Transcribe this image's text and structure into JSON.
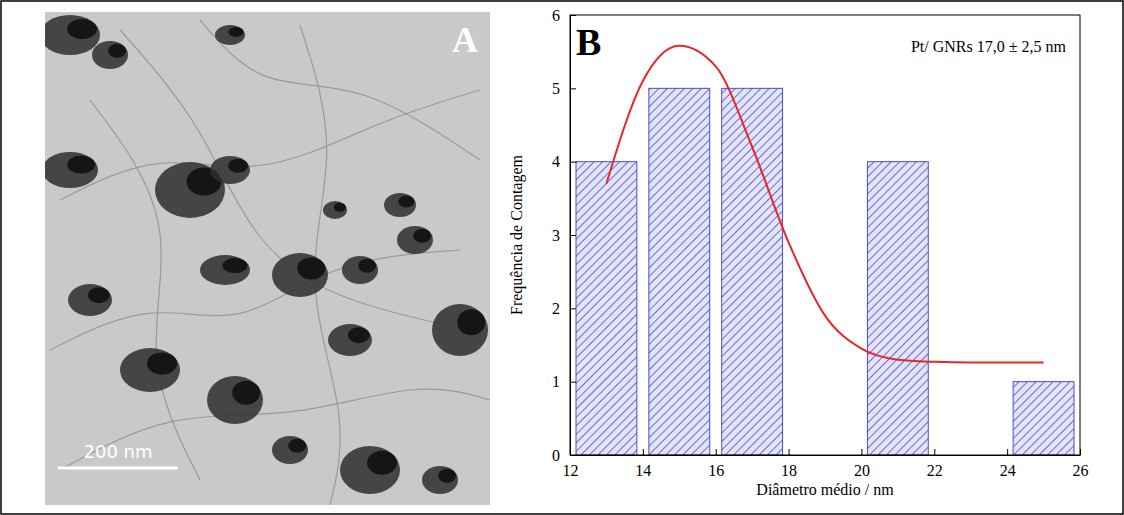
{
  "image_panel": {
    "panel_label": "A",
    "scale_bar": "200 nm"
  },
  "chart_data": {
    "type": "histogram",
    "panel_label": "B",
    "bins": [
      12,
      14,
      16,
      18,
      20,
      22,
      24,
      26
    ],
    "counts": [
      4,
      5,
      5,
      0,
      4,
      0,
      1
    ],
    "color": "#4b4bd6",
    "fit_line": {
      "type": "line",
      "color": "#e8262a",
      "x": [
        13,
        14,
        15,
        16,
        17,
        18,
        19,
        20,
        21,
        22,
        23,
        24,
        25
      ],
      "values": [
        3.7,
        5.1,
        5.58,
        5.3,
        4.2,
        2.9,
        1.9,
        1.45,
        1.3,
        1.27,
        1.26,
        1.26,
        1.26
      ]
    },
    "annotation": "Pt/ GNRs 17,0 ± 2,5 nm",
    "x_label": "Diâmetro médio / nm",
    "y_label": "Frequência de Contagem",
    "xlim": [
      12,
      26
    ],
    "xticks": [
      12,
      14,
      16,
      18,
      20,
      22,
      24,
      26
    ],
    "ylim": [
      0,
      6
    ],
    "yticks": [
      0,
      1,
      2,
      3,
      4,
      5,
      6
    ],
    "grid": false
  }
}
